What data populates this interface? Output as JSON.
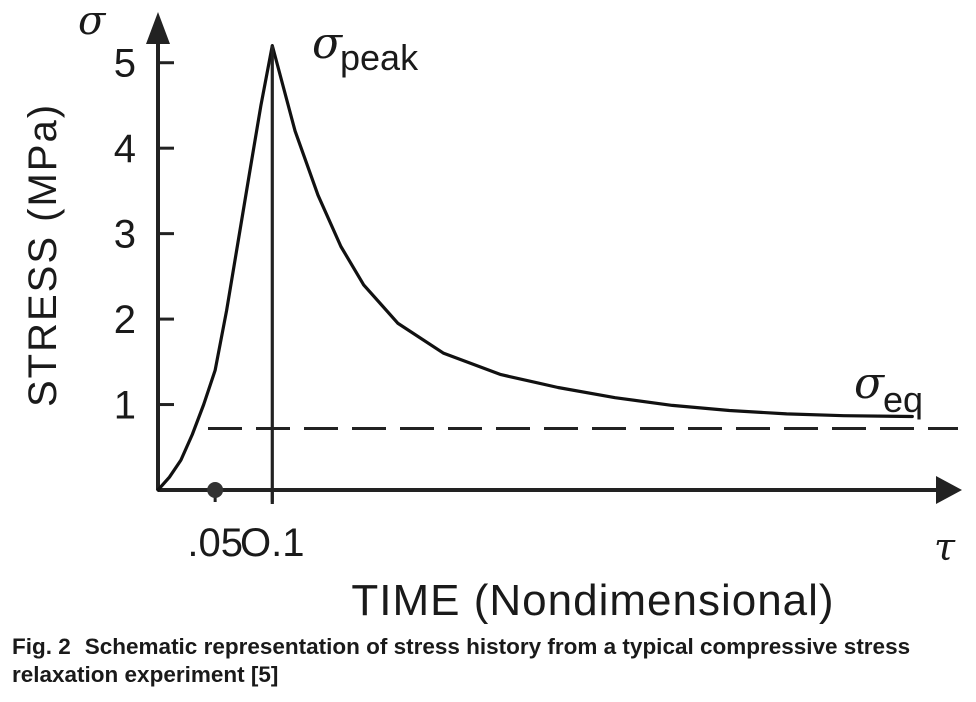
{
  "chart_data": {
    "type": "line",
    "y_axis_symbol": "σ",
    "x_axis_symbol": "τ",
    "ylabel": "STRESS (MPa)",
    "xlabel": "TIME (Nondimensional)",
    "yticks": [
      {
        "value": 1,
        "label": "1"
      },
      {
        "value": 2,
        "label": "2"
      },
      {
        "value": 3,
        "label": "3"
      },
      {
        "value": 4,
        "label": "4"
      },
      {
        "value": 5,
        "label": "5"
      }
    ],
    "xticks": [
      {
        "value": 0.05,
        "label": ".05"
      },
      {
        "value": 0.1,
        "label": "O.1"
      }
    ],
    "ylim": [
      0,
      5.5
    ],
    "xlim": [
      0,
      0.7
    ],
    "series": [
      {
        "points": [
          {
            "x": 0.0,
            "y": 0.0
          },
          {
            "x": 0.01,
            "y": 0.15
          },
          {
            "x": 0.02,
            "y": 0.35
          },
          {
            "x": 0.03,
            "y": 0.65
          },
          {
            "x": 0.04,
            "y": 1.0
          },
          {
            "x": 0.05,
            "y": 1.4
          },
          {
            "x": 0.06,
            "y": 2.1
          },
          {
            "x": 0.07,
            "y": 2.9
          },
          {
            "x": 0.08,
            "y": 3.7
          },
          {
            "x": 0.09,
            "y": 4.5
          },
          {
            "x": 0.1,
            "y": 5.2
          },
          {
            "x": 0.11,
            "y": 4.7
          },
          {
            "x": 0.12,
            "y": 4.2
          },
          {
            "x": 0.14,
            "y": 3.45
          },
          {
            "x": 0.16,
            "y": 2.85
          },
          {
            "x": 0.18,
            "y": 2.4
          },
          {
            "x": 0.21,
            "y": 1.95
          },
          {
            "x": 0.25,
            "y": 1.6
          },
          {
            "x": 0.3,
            "y": 1.35
          },
          {
            "x": 0.35,
            "y": 1.2
          },
          {
            "x": 0.4,
            "y": 1.08
          },
          {
            "x": 0.45,
            "y": 0.99
          },
          {
            "x": 0.5,
            "y": 0.93
          },
          {
            "x": 0.55,
            "y": 0.89
          },
          {
            "x": 0.6,
            "y": 0.87
          },
          {
            "x": 0.66,
            "y": 0.86
          }
        ]
      }
    ],
    "equilibrium": {
      "y": 0.72,
      "symbol": "σ",
      "subscript": "eq"
    },
    "peak": {
      "x": 0.1,
      "y": 5.2,
      "symbol": "σ",
      "subscript": "peak"
    },
    "marker_x": 0.05,
    "grid": false
  },
  "caption": {
    "number": "Fig. 2",
    "text": "Schematic representation of stress history from a typical compressive stress relaxation experiment [5]"
  }
}
